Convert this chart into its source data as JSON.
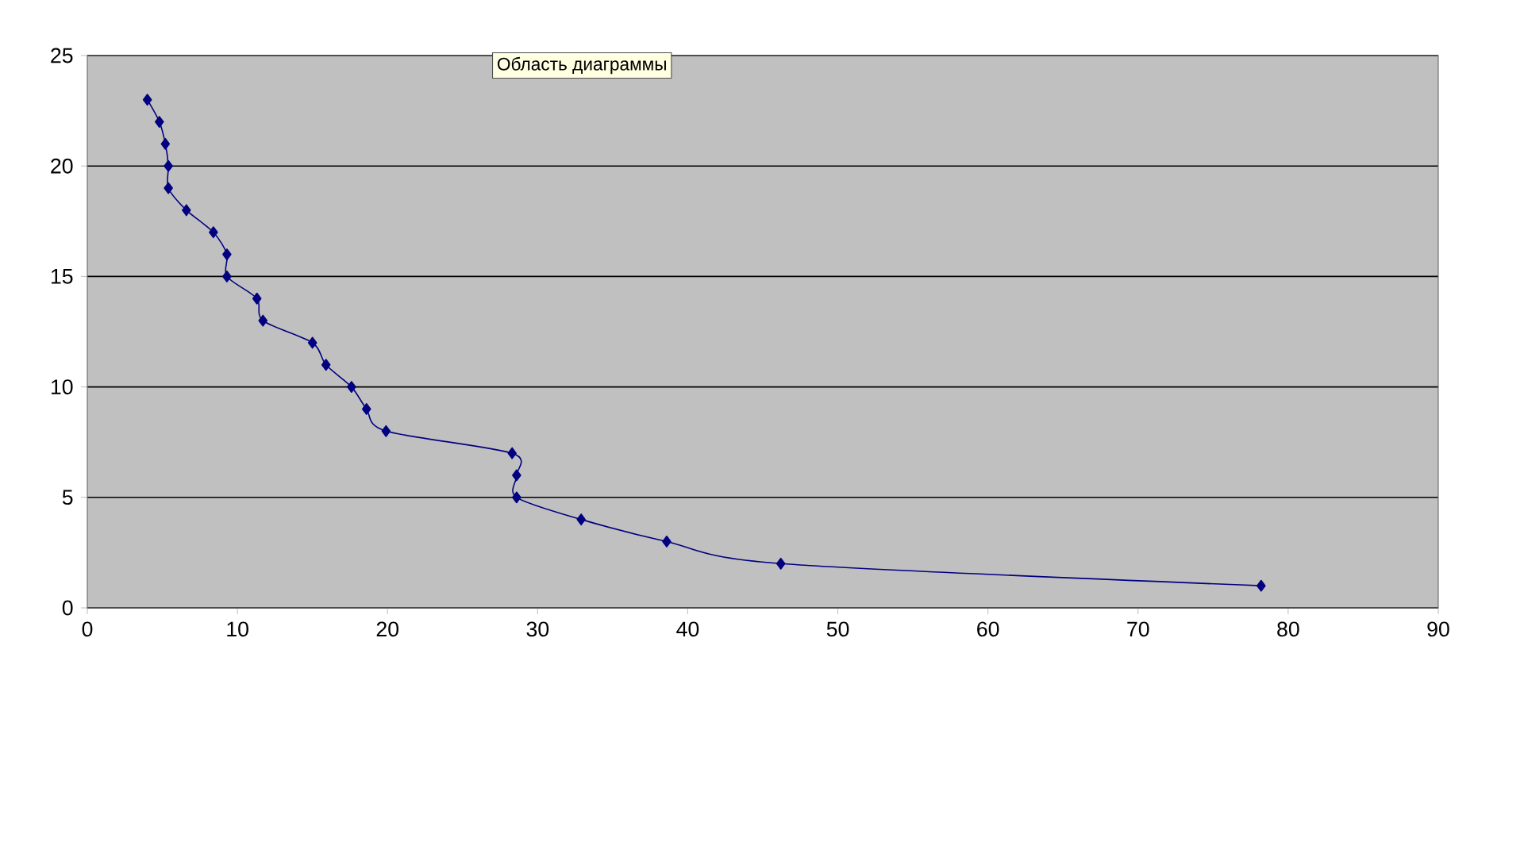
{
  "chart_data": {
    "type": "line",
    "x": [
      4.0,
      4.8,
      5.2,
      5.4,
      5.4,
      6.6,
      8.4,
      9.3,
      9.3,
      11.3,
      11.7,
      15.0,
      15.9,
      17.6,
      18.6,
      19.9,
      28.3,
      28.6,
      28.6,
      32.9,
      38.6,
      46.2,
      78.2
    ],
    "series": [
      {
        "color": "#000080",
        "values": [
          23,
          22,
          21,
          20,
          19,
          18,
          17,
          16,
          15,
          14,
          13,
          12,
          11,
          10,
          9,
          8,
          7,
          6,
          5,
          4,
          3,
          2,
          1
        ]
      }
    ],
    "xlim": [
      0,
      90
    ],
    "xticks": [
      0,
      10,
      20,
      30,
      40,
      50,
      60,
      70,
      80,
      90
    ],
    "ylim": [
      0,
      25
    ],
    "yticks": [
      0,
      5,
      10,
      15,
      20,
      25
    ],
    "grid": "y",
    "marker": "diamond",
    "line_style": "solid",
    "annotations": [
      "Область диаграммы"
    ]
  }
}
